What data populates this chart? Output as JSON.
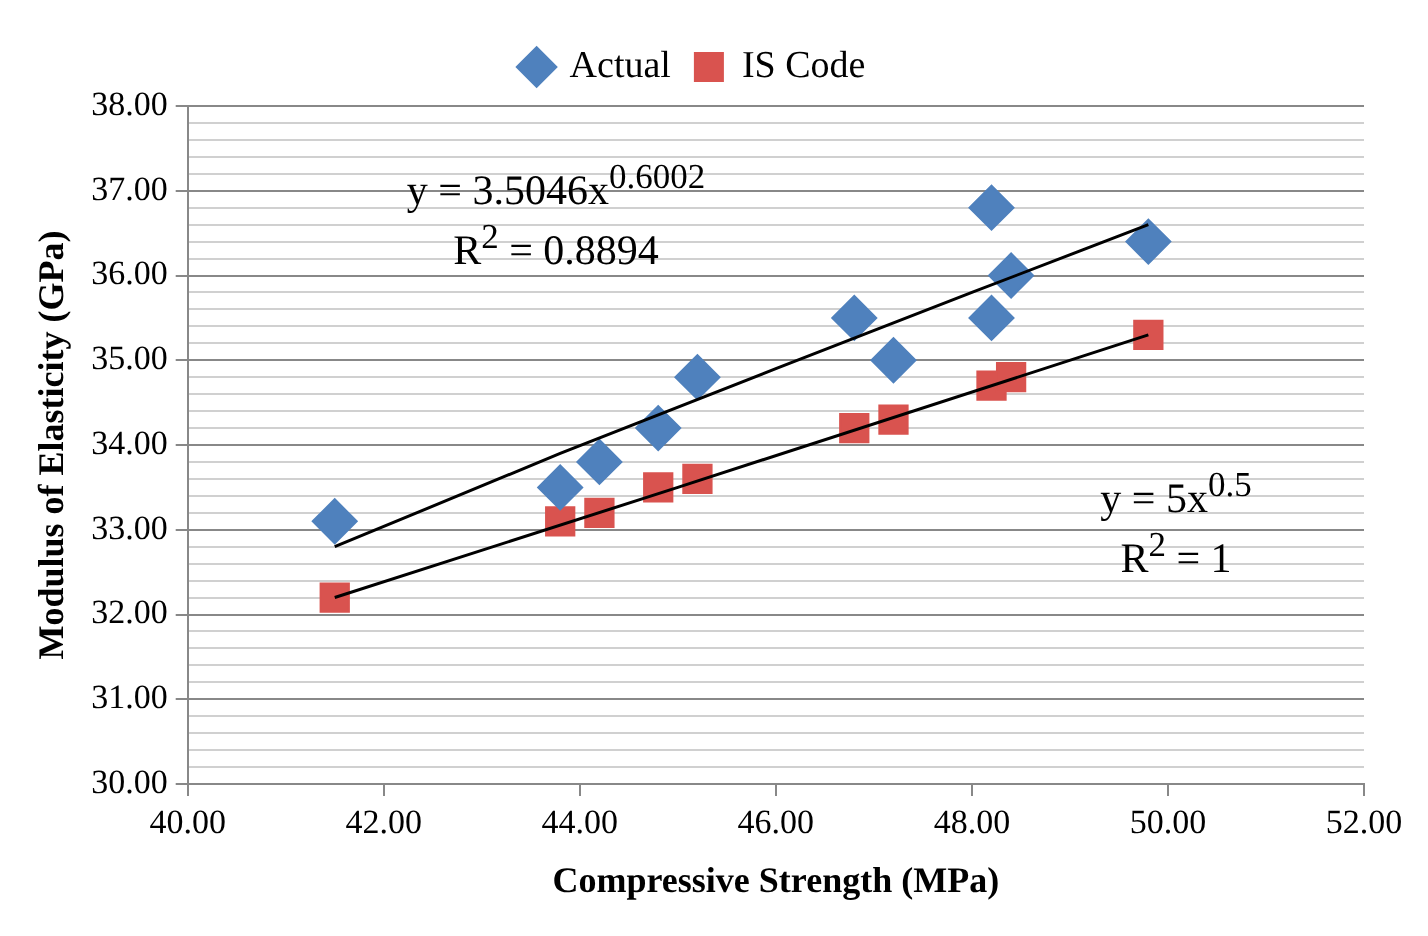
{
  "chart_data": {
    "type": "scatter",
    "xlabel": "Compressive Strength (MPa)",
    "ylabel": "Modulus of Elasticity (GPa)",
    "series": [
      {
        "name": "Actual",
        "type": "scatter",
        "color": "#4f81bd",
        "marker": "diamond",
        "x": [
          41.5,
          43.8,
          44.2,
          44.8,
          45.2,
          46.8,
          47.2,
          48.2,
          48.2,
          48.4,
          49.8
        ],
        "values": [
          33.1,
          33.5,
          33.8,
          34.2,
          34.8,
          35.5,
          35.0,
          36.8,
          35.5,
          36.0,
          36.4
        ]
      },
      {
        "name": "IS Code",
        "type": "scatter",
        "color": "#d9534f",
        "marker": "square",
        "x": [
          41.5,
          43.8,
          44.2,
          44.8,
          45.2,
          46.8,
          47.2,
          48.2,
          48.4,
          49.8
        ],
        "values": [
          32.2,
          33.1,
          33.2,
          33.5,
          33.6,
          34.2,
          34.3,
          34.7,
          34.8,
          35.3
        ]
      },
      {
        "type": "line",
        "color": "#000000",
        "marker": "none",
        "x": [
          41.5,
          43.8,
          46.0,
          48.0,
          49.8
        ],
        "values": [
          32.8,
          33.9,
          34.9,
          35.8,
          36.6
        ]
      },
      {
        "type": "line",
        "color": "#000000",
        "marker": "none",
        "x": [
          41.5,
          45.0,
          49.8
        ],
        "values": [
          32.2,
          33.5,
          35.3
        ]
      }
    ],
    "xlim": [
      40,
      52
    ],
    "xticks": [
      {
        "value": 40,
        "label": "40.00"
      },
      {
        "value": 42,
        "label": "42.00"
      },
      {
        "value": 44,
        "label": "44.00"
      },
      {
        "value": 46,
        "label": "46.00"
      },
      {
        "value": 48,
        "label": "48.00"
      },
      {
        "value": 50,
        "label": "50.00"
      },
      {
        "value": 52,
        "label": "52.00"
      }
    ],
    "ylim": [
      30,
      38
    ],
    "yticks": [
      {
        "value": 30,
        "label": "30.00"
      },
      {
        "value": 30.2,
        "label": null
      },
      {
        "value": 30.4,
        "label": null
      },
      {
        "value": 30.6,
        "label": null
      },
      {
        "value": 30.8,
        "label": null
      },
      {
        "value": 31,
        "label": "31.00"
      },
      {
        "value": 31.2,
        "label": null
      },
      {
        "value": 31.4,
        "label": null
      },
      {
        "value": 31.6,
        "label": null
      },
      {
        "value": 31.8,
        "label": null
      },
      {
        "value": 32,
        "label": "32.00"
      },
      {
        "value": 32.2,
        "label": null
      },
      {
        "value": 32.4,
        "label": null
      },
      {
        "value": 32.6,
        "label": null
      },
      {
        "value": 32.8,
        "label": null
      },
      {
        "value": 33,
        "label": "33.00"
      },
      {
        "value": 33.2,
        "label": null
      },
      {
        "value": 33.4,
        "label": null
      },
      {
        "value": 33.6,
        "label": null
      },
      {
        "value": 33.8,
        "label": null
      },
      {
        "value": 34,
        "label": "34.00"
      },
      {
        "value": 34.2,
        "label": null
      },
      {
        "value": 34.4,
        "label": null
      },
      {
        "value": 34.6,
        "label": null
      },
      {
        "value": 34.8,
        "label": null
      },
      {
        "value": 35,
        "label": "35.00"
      },
      {
        "value": 35.2,
        "label": null
      },
      {
        "value": 35.4,
        "label": null
      },
      {
        "value": 35.6,
        "label": null
      },
      {
        "value": 35.8,
        "label": null
      },
      {
        "value": 36,
        "label": "36.00"
      },
      {
        "value": 36.2,
        "label": null
      },
      {
        "value": 36.4,
        "label": null
      },
      {
        "value": 36.6,
        "label": null
      },
      {
        "value": 36.8,
        "label": null
      },
      {
        "value": 37,
        "label": "37.00"
      },
      {
        "value": 37.2,
        "label": null
      },
      {
        "value": 37.4,
        "label": null
      },
      {
        "value": 37.6,
        "label": null
      },
      {
        "value": 37.8,
        "label": null
      },
      {
        "value": 38,
        "label": "38.00"
      }
    ],
    "grid": "y",
    "legend": "top",
    "annotations": [
      "y = 3.5046x$^{0.6002}$",
      "R$^{2}$ = 0.8894",
      "y = 5x$^{0.5}$",
      "R$^{2}$ = 1"
    ]
  }
}
